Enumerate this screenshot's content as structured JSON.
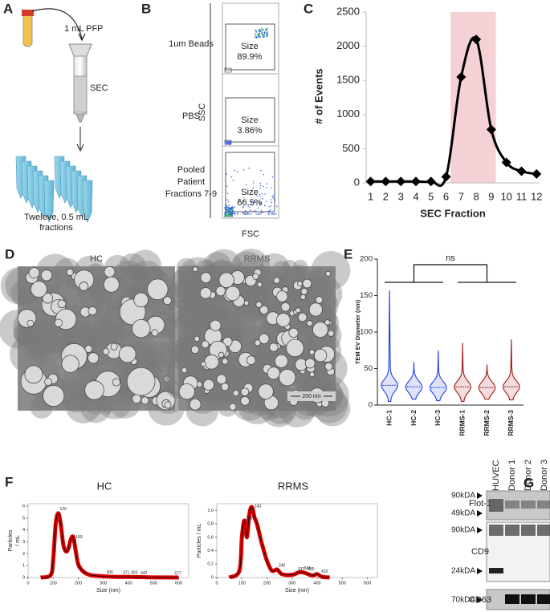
{
  "panels": {
    "a": {
      "label": "A",
      "volume": "1 mL PFP",
      "column": "SEC",
      "output": [
        "Tweleve, 0.5 mL",
        "fractions"
      ]
    },
    "b": {
      "label": "B",
      "y_axis": "SSC",
      "x_axis": "FSC",
      "rows": [
        {
          "sample": [
            "1um Beads"
          ],
          "gate": "Size",
          "percent": "89.9%"
        },
        {
          "sample": [
            "PBS"
          ],
          "gate": "Size",
          "percent": "3.86%"
        },
        {
          "sample": [
            "Pooled",
            "Patient",
            "Fractions 7-9"
          ],
          "gate": "Size",
          "percent": "66.5%"
        }
      ]
    },
    "d": {
      "label": "D",
      "titles": [
        "HC",
        "RRMS"
      ],
      "scale_bar": "200 nm"
    },
    "g": {
      "label": "G",
      "lanes": [
        "HUVEC",
        "Donor 1",
        "Donor 2",
        "Donor 3"
      ],
      "blots": [
        {
          "name": "Flot-1",
          "markers": [
            "90kDA",
            "49kDA"
          ]
        },
        {
          "name": "CD9",
          "markers": [
            "90kDA",
            "24kDA"
          ]
        },
        {
          "name": "CD63",
          "markers": [
            "70kDA"
          ]
        }
      ]
    }
  },
  "chart_data": [
    {
      "type": "line",
      "panel": "C",
      "x_label": "SEC Fraction",
      "y_label": "# of Events",
      "x": [
        1,
        2,
        3,
        4,
        5,
        6,
        7,
        8,
        9,
        10,
        11,
        12
      ],
      "values": [
        20,
        20,
        20,
        20,
        20,
        90,
        1550,
        2100,
        780,
        300,
        170,
        130
      ],
      "color": "#000000",
      "highlight": [
        6.3,
        9.3
      ],
      "highlight_color": "#f2c9cc",
      "xlim": [
        0.7,
        12.2
      ],
      "ylim": [
        0,
        2500
      ],
      "xticks": [
        1,
        2,
        3,
        4,
        5,
        6,
        7,
        8,
        9,
        10,
        11,
        12
      ],
      "yticks": [
        0,
        500,
        1000,
        1500,
        2000,
        2500
      ]
    },
    {
      "type": "violin",
      "panel": "E",
      "y_label": "TEM EV Diameter (nm)",
      "annotation": "ns",
      "categories": [
        "HC-1",
        "HC-2",
        "HC-3",
        "RRMS-1",
        "RRMS-2",
        "RRMS-3"
      ],
      "colors": [
        "#2040e0",
        "#2040e0",
        "#2040e0",
        "#a01818",
        "#a01818",
        "#a01818"
      ],
      "min": [
        5,
        8,
        6,
        5,
        8,
        7
      ],
      "median": [
        27,
        25,
        24,
        25,
        24,
        25
      ],
      "max": [
        157,
        58,
        75,
        85,
        55,
        90
      ],
      "ylim": [
        0,
        200
      ],
      "yticks": [
        0,
        50,
        100,
        150,
        200
      ]
    },
    {
      "type": "nta",
      "panel": "F",
      "title": "HC",
      "x_label": "Size (nm)",
      "y_label": [
        "Particles",
        "/ mL"
      ],
      "x": [
        50,
        90,
        100,
        110,
        120,
        130,
        140,
        150,
        160,
        170,
        180,
        190,
        200,
        220,
        250,
        300,
        350,
        400,
        450,
        500,
        600
      ],
      "values": [
        0,
        0.2,
        1.5,
        4.5,
        5.4,
        4.5,
        2.8,
        2.2,
        2.4,
        3.2,
        3.4,
        2.2,
        1.1,
        0.5,
        0.2,
        0.1,
        0.05,
        0.05,
        0.03,
        0.01,
        0
      ],
      "peaks": [
        120,
        183,
        306,
        371,
        403,
        442,
        577
      ],
      "color": "#e00000",
      "xlim": [
        0,
        640
      ],
      "ylim": [
        0,
        6.2
      ],
      "xticks": [
        0,
        100,
        200,
        300,
        400,
        500,
        600
      ],
      "yticks": [
        0,
        1,
        2,
        3,
        4,
        5,
        6
      ]
    },
    {
      "type": "nta",
      "title": "RRMS",
      "x_label": "Size (nm)",
      "y_label": [
        "Particles / mL"
      ],
      "x": [
        50,
        90,
        100,
        110,
        120,
        130,
        140,
        150,
        160,
        170,
        180,
        200,
        220,
        240,
        260,
        300,
        330,
        350,
        380,
        400,
        420,
        450
      ],
      "values": [
        0,
        0.1,
        0.6,
        0.85,
        0.6,
        0.95,
        1.05,
        0.9,
        0.8,
        0.65,
        0.5,
        0.25,
        0.1,
        0.12,
        0.05,
        0.04,
        0.08,
        0.07,
        0.03,
        0.05,
        0.01,
        0
      ],
      "peaks": [
        109,
        143,
        240,
        317,
        341,
        355,
        410
      ],
      "color": "#e00000",
      "xlim": [
        0,
        640
      ],
      "ylim": [
        0,
        1.1
      ],
      "xticks": [
        0,
        100,
        200,
        300,
        400,
        500,
        600
      ],
      "yticks": [
        0,
        0.2,
        0.4,
        0.6,
        0.8,
        {
          "value": 1.0,
          "label": "1.0"
        }
      ]
    }
  ]
}
